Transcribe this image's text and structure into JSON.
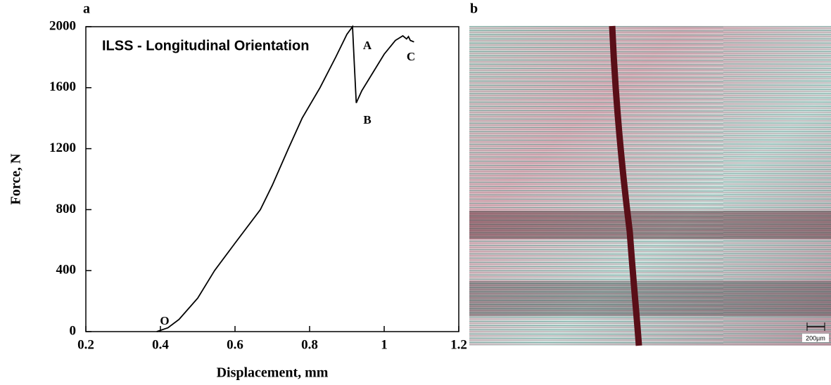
{
  "panel_labels": {
    "a": "a",
    "b": "b"
  },
  "chart_data": {
    "type": "line",
    "title": "ILSS - Longitudinal Orientation",
    "x_label": "Displacement, mm",
    "y_label": "Force, N",
    "x": [
      0.39,
      0.42,
      0.45,
      0.5,
      0.545,
      0.6,
      0.668,
      0.7,
      0.743,
      0.78,
      0.828,
      0.87,
      0.9,
      0.915,
      0.92,
      0.925,
      0.94,
      0.97,
      1.0,
      1.03,
      1.05,
      1.06,
      1.065,
      1.07,
      1.08
    ],
    "values": [
      0,
      25,
      80,
      220,
      400,
      580,
      800,
      960,
      1200,
      1400,
      1600,
      1800,
      1950,
      2000,
      1750,
      1500,
      1580,
      1700,
      1820,
      1910,
      1940,
      1920,
      1935,
      1910,
      1900
    ],
    "color": "#000000",
    "annotations": [
      "A",
      "B",
      "C",
      "O"
    ],
    "xlim": [
      0.2,
      1.2
    ],
    "xticks": [
      0.2,
      0.4,
      0.6,
      0.8,
      1,
      1.2
    ],
    "ylim": [
      0,
      2000
    ],
    "yticks": [
      0,
      400,
      800,
      1200,
      1600,
      2000
    ],
    "grid": false
  },
  "micrograph": {
    "scale_bar": "200µm"
  }
}
